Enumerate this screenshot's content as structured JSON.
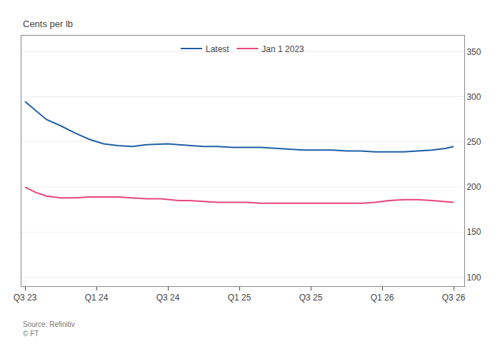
{
  "chart_data": {
    "type": "line",
    "ylabel": "Cents per lb",
    "annotations": [
      "Source: Refinitiv\n© FT"
    ],
    "x": [
      0,
      0.3,
      0.6,
      1.0,
      1.4,
      1.8,
      2.2,
      2.6,
      3.0,
      3.4,
      3.8,
      4.0,
      4.3,
      4.6,
      5.0,
      5.4,
      5.8,
      6.2,
      6.6,
      7.0,
      7.4,
      7.8,
      8.2,
      8.6,
      9.0,
      9.4,
      9.8,
      10.2,
      10.6,
      11.0,
      11.4,
      11.8,
      12.0
    ],
    "series": [
      {
        "name": "Latest",
        "color": "#1f5fa6",
        "values": [
          295,
          285,
          275,
          268,
          260,
          253,
          248,
          246,
          245,
          247,
          248,
          248,
          247,
          246,
          245,
          245,
          244,
          244,
          244,
          243,
          242,
          241,
          241,
          241,
          240,
          240,
          239,
          239,
          239,
          240,
          241,
          243,
          245
        ]
      },
      {
        "name": "Jan 1 2023",
        "color": "#e8457a",
        "values": [
          200,
          194,
          190,
          188,
          188,
          189,
          189,
          189,
          188,
          187,
          187,
          186,
          185,
          185,
          184,
          183,
          183,
          183,
          182,
          182,
          182,
          182,
          182,
          182,
          182,
          182,
          183,
          185,
          186,
          186,
          185,
          184,
          183
        ]
      }
    ],
    "xlim": [
      -0.1,
      12.3
    ],
    "xticks": [
      {
        "value": 0,
        "label": "Q3 23"
      },
      {
        "value": 2,
        "label": "Q1 24"
      },
      {
        "value": 4,
        "label": "Q3 24"
      },
      {
        "value": 6,
        "label": "Q1 25"
      },
      {
        "value": 8,
        "label": "Q3 25"
      },
      {
        "value": 10,
        "label": "Q1 26"
      },
      {
        "value": 12,
        "label": "Q3 26"
      }
    ],
    "ylim": [
      90,
      368
    ],
    "yticks": [
      100,
      150,
      200,
      250,
      300,
      350
    ],
    "grid": true,
    "legend": "top"
  }
}
